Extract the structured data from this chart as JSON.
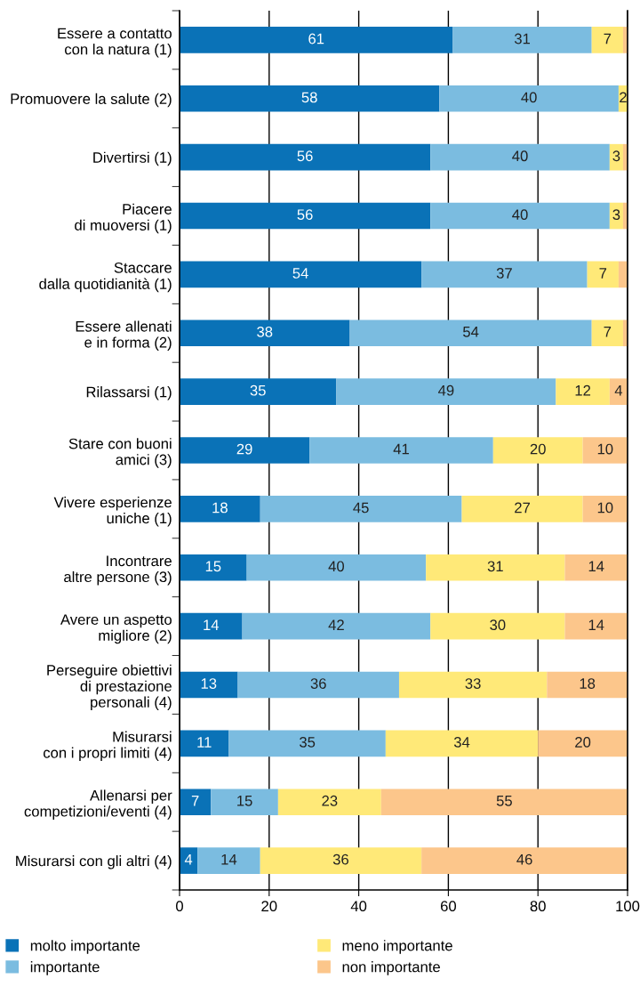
{
  "chart_data": {
    "type": "bar",
    "orientation": "horizontal",
    "stacked": true,
    "categories": [
      "Essere a contatto\ncon la natura (1)",
      "Promuovere la salute (2)",
      "Divertirsi (1)",
      "Piacere\ndi muoversi (1)",
      "Staccare\ndalla quotidianità (1)",
      "Essere allenati\ne in forma (2)",
      "Rilassarsi (1)",
      "Stare con buoni\namici (3)",
      "Vivere esperienze\nuniche (1)",
      "Incontrare\naltre persone (3)",
      "Avere un aspetto\nmigliore (2)",
      "Perseguire obiettivi\ndi prestazione\npersonali (4)",
      "Misurarsi\ncon i propri limiti (4)",
      "Allenarsi per\ncompetizioni/eventi (4)",
      "Misurarsi con gli altri (4)"
    ],
    "series": [
      {
        "name": "molto importante",
        "color": "#0a72b7",
        "values": [
          61,
          58,
          56,
          56,
          54,
          38,
          35,
          29,
          18,
          15,
          14,
          13,
          11,
          7,
          4
        ],
        "value_labels": [
          "61",
          "58",
          "56",
          "56",
          "54",
          "38",
          "35",
          "29",
          "18",
          "15",
          "14",
          "13",
          "11",
          "7",
          "4"
        ]
      },
      {
        "name": "importante",
        "color": "#7bbce0",
        "values": [
          31,
          40,
          40,
          40,
          37,
          54,
          49,
          41,
          45,
          40,
          42,
          36,
          35,
          15,
          14
        ],
        "value_labels": [
          "31",
          "40",
          "40",
          "40",
          "37",
          "54",
          "49",
          "41",
          "45",
          "40",
          "42",
          "36",
          "35",
          "15",
          "14"
        ]
      },
      {
        "name": "meno importante",
        "color": "#ffe978",
        "values": [
          7,
          2,
          3,
          3,
          7,
          7,
          12,
          20,
          27,
          31,
          30,
          33,
          34,
          23,
          36
        ],
        "value_labels": [
          "7",
          "2",
          "3",
          "3",
          "7",
          "7",
          "12",
          "20",
          "27",
          "31",
          "30",
          "33",
          "34",
          "23",
          "36"
        ]
      },
      {
        "name": "non importante",
        "color": "#fcc68b",
        "values": [
          1,
          0,
          1,
          1,
          2,
          1,
          4,
          10,
          10,
          14,
          14,
          18,
          20,
          55,
          46
        ],
        "value_labels": [
          null,
          null,
          null,
          null,
          null,
          null,
          "4",
          "10",
          "10",
          "14",
          "14",
          "18",
          "20",
          "55",
          "46"
        ]
      }
    ],
    "xlim": [
      0,
      100
    ],
    "xticks": [
      0,
      20,
      40,
      60,
      80,
      100
    ],
    "grid": "x",
    "legend": "bottom"
  }
}
